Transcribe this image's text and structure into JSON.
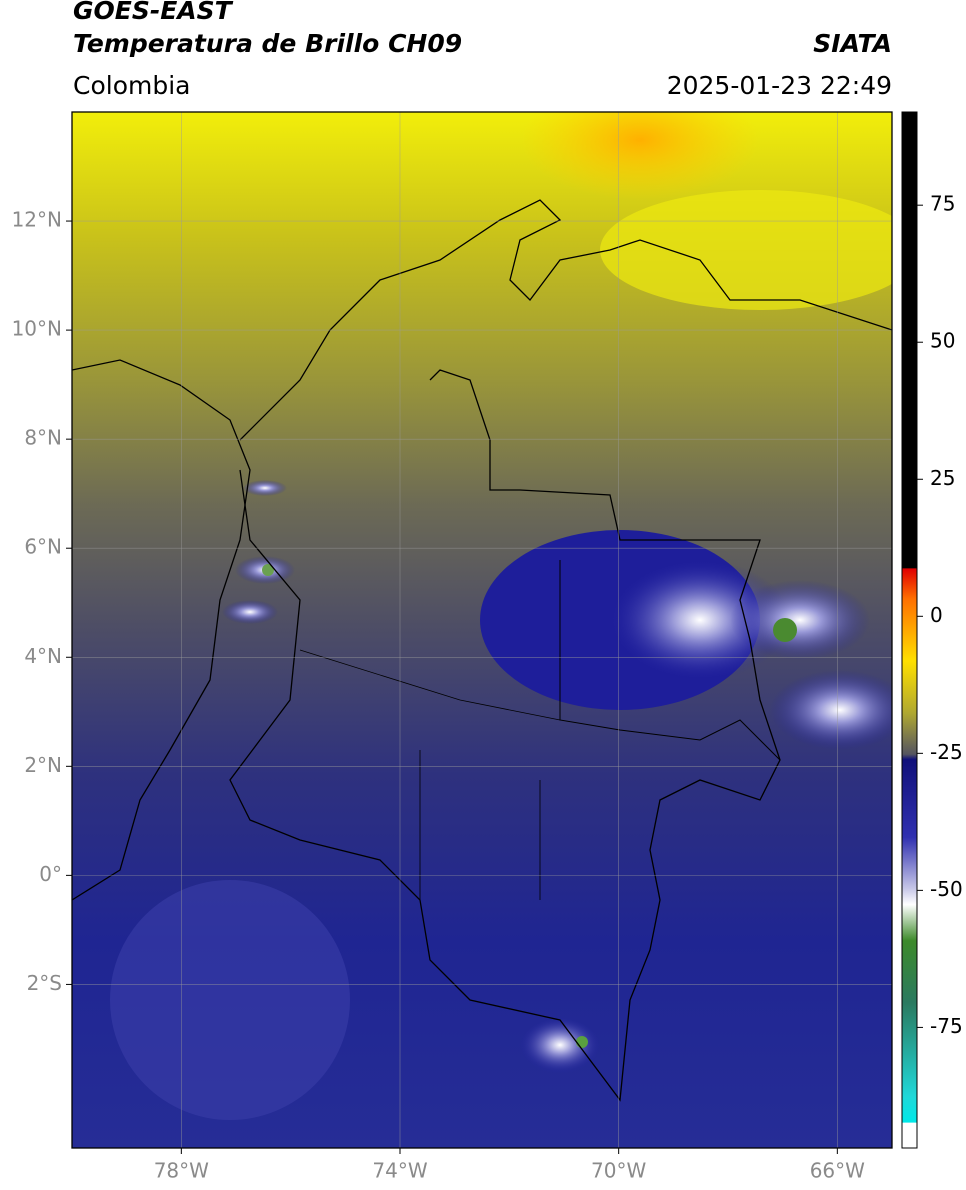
{
  "header": {
    "title": "GOES-EAST",
    "subtitle": "Temperatura de Brillo CH09",
    "region": "Colombia",
    "source": "SIATA",
    "datetime": "2025-01-23 22:49"
  },
  "map": {
    "xlim": [
      -80,
      -65
    ],
    "ylim": [
      -5,
      14
    ],
    "xticks": [
      {
        "value": -78,
        "label": "78°W"
      },
      {
        "value": -74,
        "label": "74°W"
      },
      {
        "value": -70,
        "label": "70°W"
      },
      {
        "value": -66,
        "label": "66°W"
      }
    ],
    "yticks": [
      {
        "value": 12,
        "label": "12°N"
      },
      {
        "value": 10,
        "label": "10°N"
      },
      {
        "value": 8,
        "label": "8°N"
      },
      {
        "value": 6,
        "label": "6°N"
      },
      {
        "value": 4,
        "label": "4°N"
      },
      {
        "value": 2,
        "label": "2°N"
      },
      {
        "value": 0,
        "label": "0°"
      },
      {
        "value": -2,
        "label": "2°S"
      }
    ],
    "grid": true
  },
  "colorbar": {
    "lim": [
      -97,
      92
    ],
    "ticks": [
      75,
      50,
      25,
      0,
      -25,
      -50,
      -75
    ]
  }
}
